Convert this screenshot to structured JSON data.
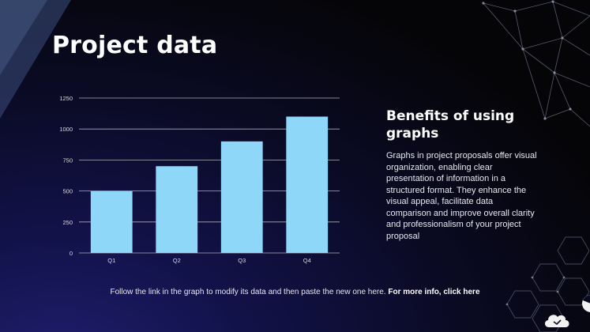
{
  "slide": {
    "title": "Project data",
    "side_heading": "Benefits of using graphs",
    "side_body": "Graphs in project proposals offer visual organization, enabling clear presentation of information in a structured format. They enhance the visual appeal, facilitate data comparison and improve overall clarity and professionalism of your project proposal",
    "footer_text": "Follow the link in the graph to modify its data and then paste the new one here.",
    "footer_link": "For more info, click here"
  },
  "colors": {
    "bar": "#8fd7f9",
    "grid": "#c8c8d0",
    "tick_text": "#d8d8e0",
    "accent_lines": "#6a6f86"
  },
  "icons": [
    "cloud-icon",
    "pie-icon"
  ],
  "chart_data": {
    "type": "bar",
    "categories": [
      "Q1",
      "Q2",
      "Q3",
      "Q4"
    ],
    "values": [
      500,
      700,
      900,
      1100
    ],
    "yticks": [
      0,
      250,
      500,
      750,
      1000,
      1250
    ],
    "ylim": [
      0,
      1250
    ],
    "xlabel": "",
    "ylabel": "",
    "grid": true
  }
}
